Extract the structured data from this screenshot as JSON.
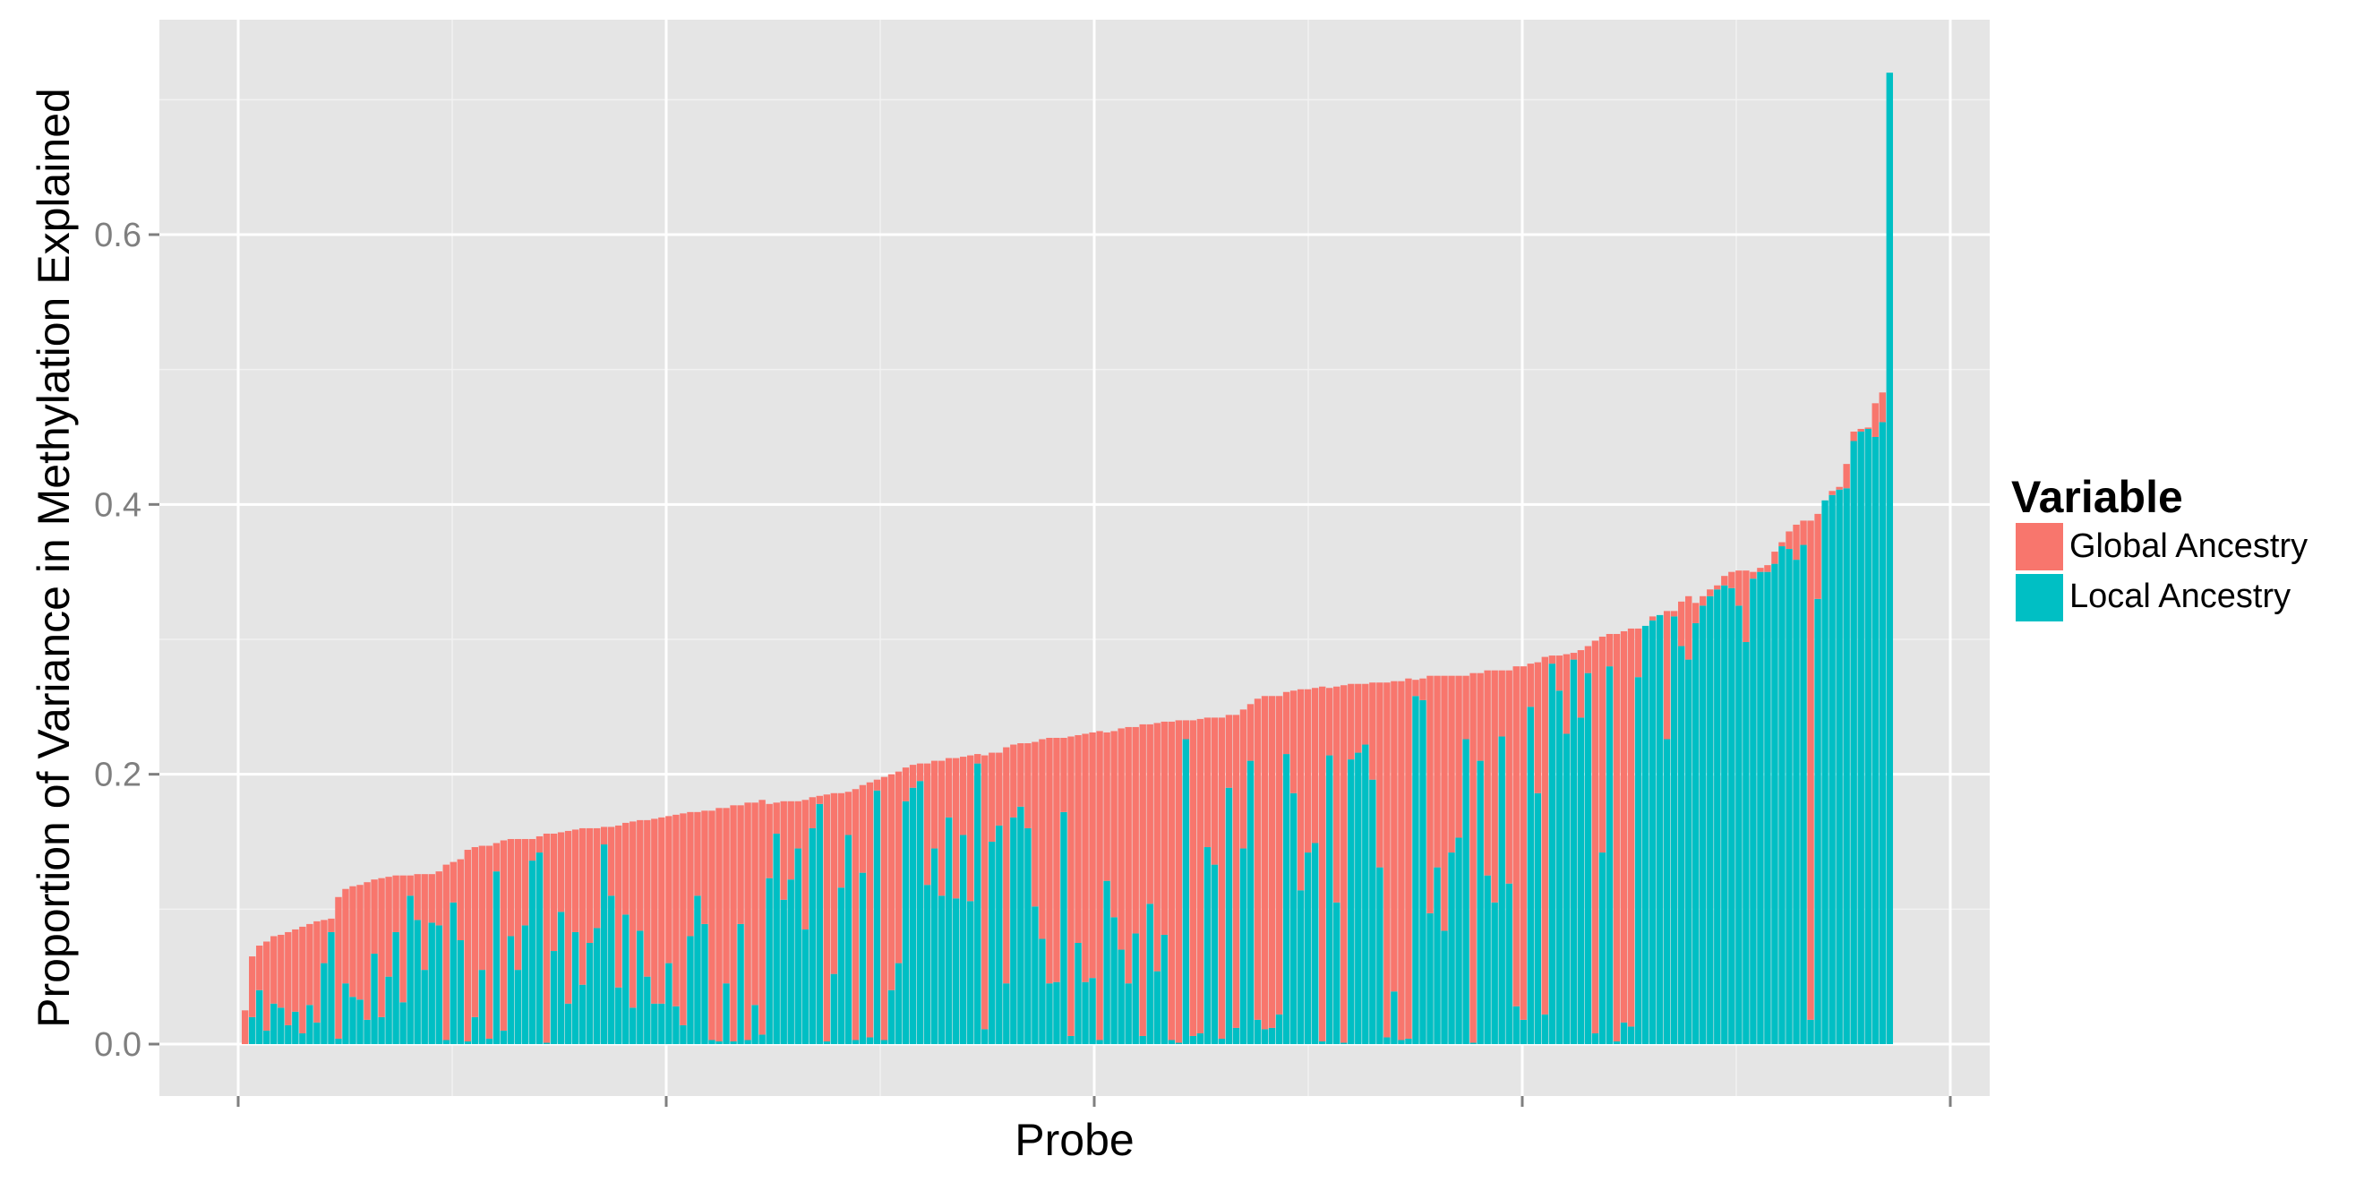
{
  "chart_data": {
    "type": "bar",
    "stacked": true,
    "xlabel": "Probe",
    "ylabel": "Proportion of Variance in Methylation Explained",
    "ylim": [
      -0.025,
      0.76
    ],
    "y_ticks": [
      0.0,
      0.2,
      0.4,
      0.6
    ],
    "y_tick_labels": [
      "0.0",
      "0.2",
      "0.4",
      "0.6"
    ],
    "grid": true,
    "legend": {
      "title": "Variable",
      "placement": "right",
      "entries": [
        "Global Ancestry",
        "Local Ancestry"
      ]
    },
    "colors": {
      "Global Ancestry": "#F8766D",
      "Local Ancestry": "#00BFC4",
      "panel": "#E5E5E5",
      "grid": "#FFFFFF"
    },
    "series": [
      {
        "name": "Local Ancestry",
        "values": [
          0,
          0.02,
          0.04,
          0.01,
          0.03,
          0.027,
          0.014,
          0.024,
          0.008,
          0.029,
          0.016,
          0.06,
          0.083,
          0.004,
          0.045,
          0.035,
          0.033,
          0.018,
          0.067,
          0.02,
          0.05,
          0.083,
          0.031,
          0.11,
          0.092,
          0.055,
          0.09,
          0.088,
          0.003,
          0.105,
          0.077,
          0.002,
          0.02,
          0.055,
          0.004,
          0.128,
          0.01,
          0.08,
          0.055,
          0.088,
          0.136,
          0.142,
          0.001,
          0.069,
          0.098,
          0.03,
          0.083,
          0.044,
          0.075,
          0.086,
          0.148,
          0.11,
          0.042,
          0.096,
          0.027,
          0.084,
          0.05,
          0.03,
          0.03,
          0.06,
          0.028,
          0.014,
          0.08,
          0.11,
          0.089,
          0.003,
          0.002,
          0.045,
          0.002,
          0.089,
          0.003,
          0.029,
          0.007,
          0.123,
          0.156,
          0.107,
          0.122,
          0.145,
          0.085,
          0.16,
          0.178,
          0.002,
          0.052,
          0.116,
          0.155,
          0.003,
          0.127,
          0.005,
          0.188,
          0.003,
          0.04,
          0.06,
          0.18,
          0.19,
          0.195,
          0.118,
          0.145,
          0.11,
          0.168,
          0.108,
          0.155,
          0.106,
          0.208,
          0.011,
          0.15,
          0.162,
          0.045,
          0.168,
          0.176,
          0.16,
          0.102,
          0.078,
          0.045,
          0.046,
          0.172,
          0.006,
          0.075,
          0.046,
          0.049,
          0.003,
          0.121,
          0.094,
          0.07,
          0.045,
          0.082,
          0.006,
          0.104,
          0.054,
          0.081,
          0.003,
          0.001,
          0.226,
          0.006,
          0.008,
          0.146,
          0.133,
          0.004,
          0.19,
          0.012,
          0.145,
          0.21,
          0.018,
          0.011,
          0.012,
          0.022,
          0.215,
          0.186,
          0.114,
          0.142,
          0.149,
          0.002,
          0.214,
          0.105,
          0.001,
          0.211,
          0.216,
          0.222,
          0.196,
          0.131,
          0.005,
          0.039,
          0.003,
          0.004,
          0.258,
          0.255,
          0.097,
          0.131,
          0.084,
          0.142,
          0.153,
          0.226,
          0.001,
          0.21,
          0.125,
          0.105,
          0.228,
          0.119,
          0.028,
          0.018,
          0.25,
          0.186,
          0.022,
          0.282,
          0.262,
          0.23,
          0.285,
          0.242,
          0.275,
          0.008,
          0.142,
          0.28,
          0.002,
          0.016,
          0.013,
          0.272,
          0.31,
          0.314,
          0.318,
          0.226,
          0.317,
          0.295,
          0.285,
          0.312,
          0.325,
          0.332,
          0.337,
          0.34,
          0.338,
          0.325,
          0.298,
          0.345,
          0.35,
          0.35,
          0.356,
          0.369,
          0.367,
          0.359,
          0.37,
          0.018,
          0.33,
          0.403,
          0.407,
          0.411,
          0.412,
          0.447,
          0.454,
          0.456,
          0.45,
          0.461,
          0.72
        ]
      },
      {
        "name": "Global Ancestry",
        "values": [
          0.025,
          0.045,
          0.033,
          0.066,
          0.05,
          0.054,
          0.069,
          0.061,
          0.079,
          0.06,
          0.075,
          0.032,
          0.01,
          0.105,
          0.07,
          0.082,
          0.085,
          0.102,
          0.055,
          0.103,
          0.074,
          0.042,
          0.094,
          0.015,
          0.034,
          0.071,
          0.036,
          0.04,
          0.13,
          0.03,
          0.06,
          0.142,
          0.126,
          0.092,
          0.143,
          0.021,
          0.141,
          0.072,
          0.097,
          0.064,
          0.016,
          0.012,
          0.155,
          0.087,
          0.059,
          0.128,
          0.076,
          0.116,
          0.085,
          0.074,
          0.013,
          0.051,
          0.12,
          0.068,
          0.138,
          0.082,
          0.116,
          0.137,
          0.138,
          0.109,
          0.142,
          0.157,
          0.092,
          0.062,
          0.084,
          0.17,
          0.173,
          0.13,
          0.175,
          0.088,
          0.176,
          0.15,
          0.174,
          0.055,
          0.023,
          0.073,
          0.058,
          0.035,
          0.096,
          0.023,
          0.006,
          0.183,
          0.134,
          0.07,
          0.032,
          0.186,
          0.065,
          0.189,
          0.008,
          0.195,
          0.16,
          0.142,
          0.025,
          0.017,
          0.013,
          0.09,
          0.065,
          0.1,
          0.044,
          0.104,
          0.058,
          0.108,
          0.007,
          0.203,
          0.066,
          0.054,
          0.175,
          0.054,
          0.047,
          0.063,
          0.122,
          0.148,
          0.182,
          0.181,
          0.055,
          0.222,
          0.154,
          0.184,
          0.182,
          0.229,
          0.11,
          0.138,
          0.164,
          0.19,
          0.153,
          0.231,
          0.133,
          0.184,
          0.158,
          0.236,
          0.239,
          0.014,
          0.234,
          0.233,
          0.096,
          0.109,
          0.238,
          0.054,
          0.232,
          0.103,
          0.042,
          0.238,
          0.247,
          0.246,
          0.236,
          0.046,
          0.076,
          0.149,
          0.121,
          0.115,
          0.263,
          0.05,
          0.16,
          0.265,
          0.056,
          0.051,
          0.045,
          0.072,
          0.137,
          0.263,
          0.23,
          0.266,
          0.267,
          0.012,
          0.016,
          0.176,
          0.142,
          0.189,
          0.131,
          0.12,
          0.047,
          0.274,
          0.065,
          0.152,
          0.172,
          0.049,
          0.158,
          0.252,
          0.262,
          0.032,
          0.097,
          0.265,
          0.006,
          0.026,
          0.059,
          0.005,
          0.05,
          0.02,
          0.291,
          0.16,
          0.024,
          0.302,
          0.29,
          0.295,
          0.036,
          0,
          0.003,
          0,
          0.095,
          0.004,
          0.033,
          0.047,
          0.015,
          0.007,
          0.005,
          0.003,
          0.007,
          0.012,
          0.026,
          0.053,
          0.005,
          0.003,
          0.005,
          0.009,
          0.003,
          0.013,
          0.026,
          0.018,
          0.37,
          0.063,
          0,
          0.003,
          0.002,
          0.018,
          0.007,
          0.002,
          0.001,
          0.025,
          0.022,
          0
        ]
      }
    ]
  }
}
